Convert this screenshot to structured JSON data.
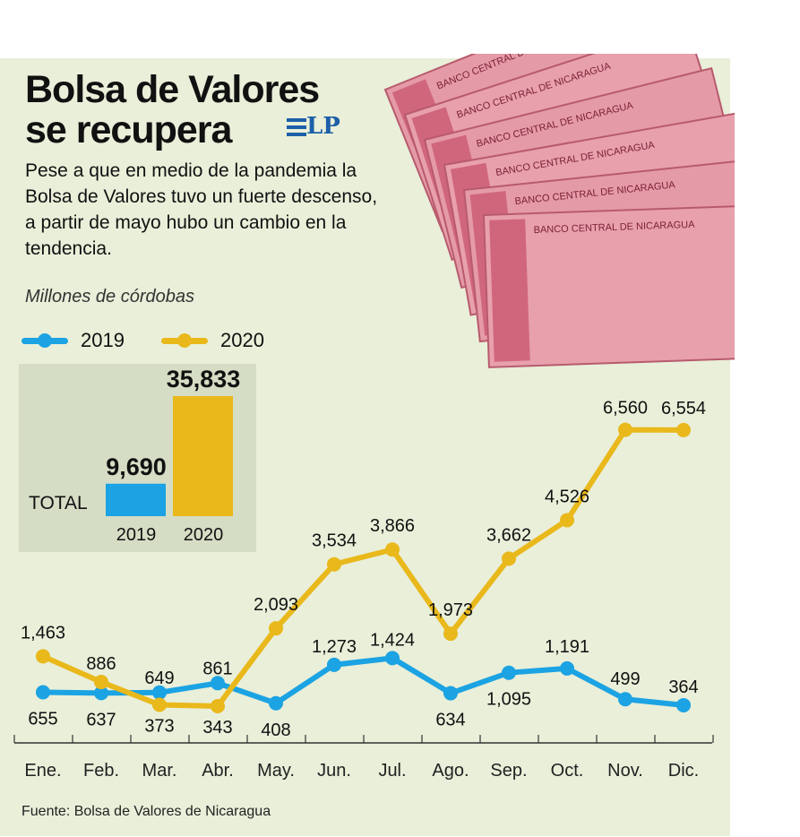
{
  "title": [
    "Bolsa de Valores",
    "se recupera"
  ],
  "logo": "LP",
  "description": "Pese a que en medio de la pandemia la Bolsa de Valores tuvo un fuerte descenso, a partir de mayo hubo un cambio en la tendencia.",
  "unit": "Millones de córdobas",
  "source": "Fuente: Bolsa de Valores de Nicaragua",
  "banknote_text": "BANCO CENTRAL DE NICARAGUA",
  "colors": {
    "s2019": "#1ba3e3",
    "s2020": "#e9b81b"
  },
  "chart_data": [
    {
      "type": "line",
      "title": "",
      "ylabel": "Millones de córdobas",
      "categories": [
        "Ene.",
        "Feb.",
        "Mar.",
        "Abr.",
        "May.",
        "Jun.",
        "Jul.",
        "Ago.",
        "Sep.",
        "Oct.",
        "Nov.",
        "Dic."
      ],
      "series": [
        {
          "name": "2019",
          "values": [
            655,
            637,
            649,
            861,
            408,
            1273,
            1424,
            634,
            1095,
            1191,
            499,
            364
          ],
          "labels": [
            "655",
            "637",
            "649",
            "861",
            "408",
            "1,273",
            "1,424",
            "634",
            "1,095",
            "1,191",
            "499",
            "364"
          ]
        },
        {
          "name": "2020",
          "values": [
            1463,
            886,
            373,
            343,
            2093,
            3534,
            3866,
            1973,
            3662,
            4526,
            6560,
            6554
          ],
          "labels": [
            "1,463",
            "886",
            "373",
            "343",
            "2,093",
            "3,534",
            "3,866",
            "1,973",
            "3,662",
            "4,526",
            "6,560",
            "6,554"
          ]
        }
      ],
      "ylim": [
        0,
        7000
      ],
      "grid": false,
      "legend": "top-left"
    },
    {
      "type": "bar",
      "title": "TOTAL",
      "categories": [
        "2019",
        "2020"
      ],
      "values": [
        9690,
        35833
      ],
      "labels": [
        "9,690",
        "35,833"
      ]
    }
  ]
}
